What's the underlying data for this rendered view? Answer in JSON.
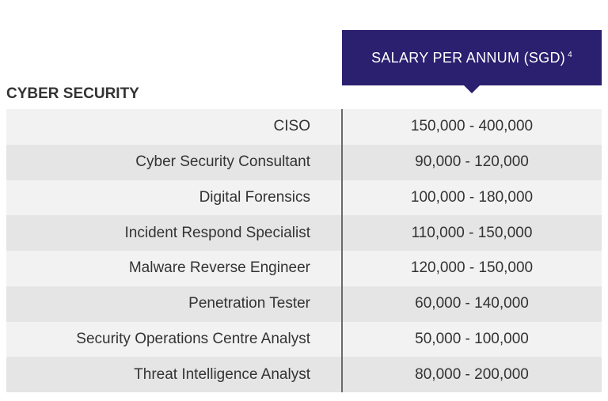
{
  "section": "CYBER SECURITY",
  "header": {
    "title": "SALARY PER ANNUM (SGD)",
    "footnote": "4"
  },
  "table": {
    "rows": [
      [
        "CISO",
        "150,000 - 400,000"
      ],
      [
        "Cyber Security Consultant",
        "90,000 - 120,000"
      ],
      [
        "Digital Forensics",
        "100,000 - 180,000"
      ],
      [
        "Incident Respond Specialist",
        "110,000 - 150,000"
      ],
      [
        "Malware Reverse Engineer",
        "120,000 - 150,000"
      ],
      [
        "Penetration Tester",
        "60,000 - 140,000"
      ],
      [
        "Security Operations Centre Analyst",
        "50,000 - 100,000"
      ],
      [
        "Threat Intelligence Analyst",
        "80,000 - 200,000"
      ]
    ]
  }
}
